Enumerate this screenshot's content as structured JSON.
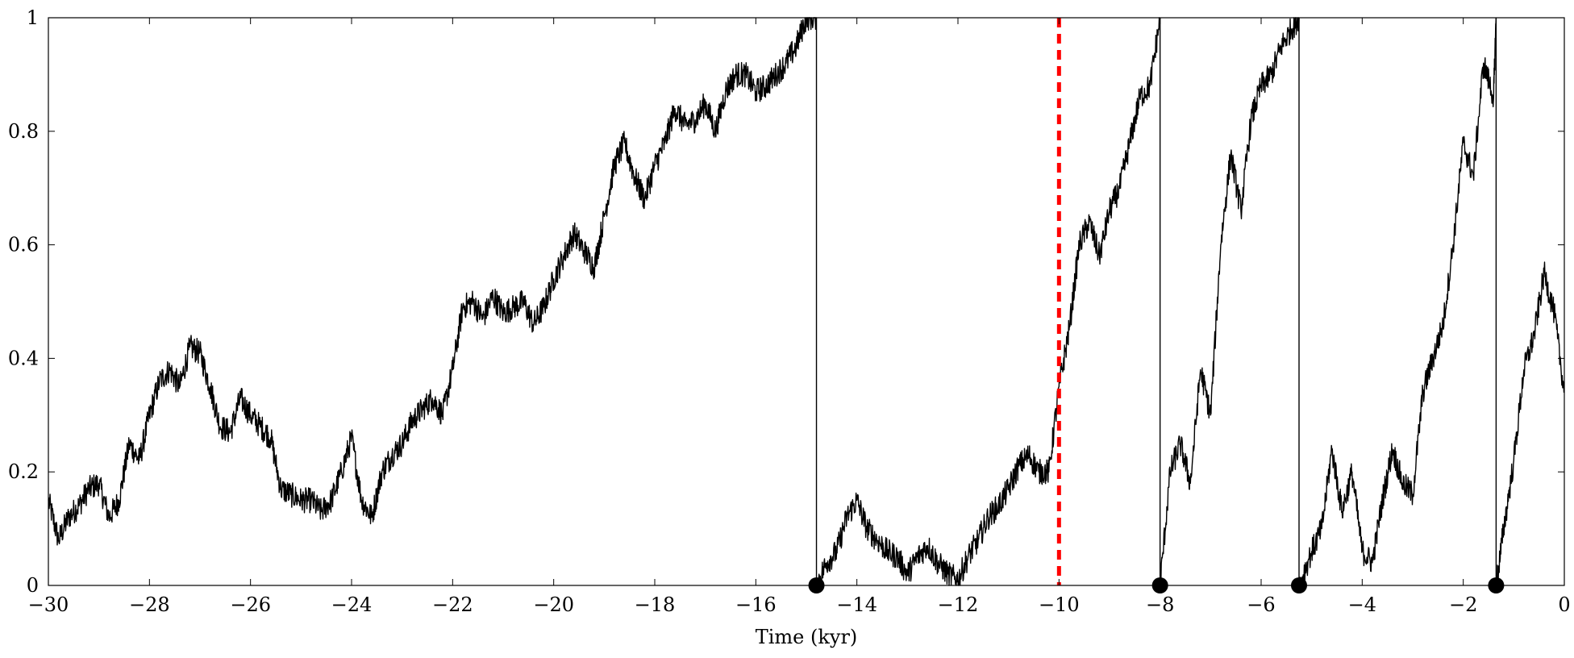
{
  "chart_data": {
    "type": "line",
    "title": "",
    "xlabel": "Time (kyr)",
    "ylabel": "",
    "xlim": [
      -30,
      0
    ],
    "ylim": [
      0,
      1
    ],
    "grid": false,
    "x_ticks": [
      -30,
      -28,
      -26,
      -24,
      -22,
      -20,
      -18,
      -16,
      -14,
      -12,
      -10,
      -8,
      -6,
      -4,
      -2,
      0
    ],
    "x_tick_labels": [
      "−30",
      "−28",
      "−26",
      "−24",
      "−22",
      "−20",
      "−18",
      "−16",
      "−14",
      "−12",
      "−10",
      "−8",
      "−6",
      "−4",
      "−2",
      "0"
    ],
    "y_ticks": [
      0,
      0.2,
      0.4,
      0.6,
      0.8,
      1
    ],
    "y_tick_labels": [
      "0",
      "0.2",
      "0.4",
      "0.6",
      "0.8",
      "1"
    ],
    "series": [
      {
        "color": "#000000",
        "x": [
          -30,
          -29.8,
          -29.6,
          -29.4,
          -29.2,
          -29.0,
          -28.8,
          -28.6,
          -28.4,
          -28.2,
          -28.0,
          -27.8,
          -27.6,
          -27.4,
          -27.2,
          -27.0,
          -26.8,
          -26.6,
          -26.4,
          -26.2,
          -26.0,
          -25.8,
          -25.6,
          -25.4,
          -25.2,
          -25.0,
          -24.8,
          -24.6,
          -24.4,
          -24.2,
          -24.0,
          -23.8,
          -23.6,
          -23.4,
          -23.2,
          -23.0,
          -22.8,
          -22.6,
          -22.4,
          -22.2,
          -22.0,
          -21.8,
          -21.6,
          -21.4,
          -21.2,
          -21.0,
          -20.8,
          -20.6,
          -20.4,
          -20.2,
          -20.0,
          -19.8,
          -19.6,
          -19.4,
          -19.2,
          -19.0,
          -18.8,
          -18.6,
          -18.4,
          -18.2,
          -18.0,
          -17.8,
          -17.6,
          -17.4,
          -17.2,
          -17.0,
          -16.8,
          -16.6,
          -16.4,
          -16.2,
          -16.0,
          -15.8,
          -15.6,
          -15.4,
          -15.2,
          -15.0,
          -14.8,
          -14.8,
          -14.6,
          -14.4,
          -14.2,
          -14.0,
          -13.8,
          -13.6,
          -13.4,
          -13.2,
          -13.0,
          -12.8,
          -12.6,
          -12.4,
          -12.2,
          -12.0,
          -11.8,
          -11.6,
          -11.4,
          -11.2,
          -11.0,
          -10.8,
          -10.6,
          -10.4,
          -10.2,
          -10.0,
          -9.8,
          -9.6,
          -9.4,
          -9.2,
          -9.0,
          -8.8,
          -8.6,
          -8.4,
          -8.2,
          -8.0,
          -8.0,
          -7.8,
          -7.6,
          -7.4,
          -7.2,
          -7.0,
          -6.8,
          -6.6,
          -6.4,
          -6.2,
          -6.0,
          -5.8,
          -5.6,
          -5.4,
          -5.25,
          -5.25,
          -5.0,
          -4.8,
          -4.6,
          -4.4,
          -4.2,
          -4.0,
          -3.8,
          -3.6,
          -3.4,
          -3.2,
          -3.0,
          -2.8,
          -2.6,
          -2.4,
          -2.2,
          -2.0,
          -1.8,
          -1.6,
          -1.4,
          -1.35,
          -1.35,
          -1.2,
          -1.0,
          -0.8,
          -0.6,
          -0.4,
          -0.2,
          0.0
        ],
        "y": [
          0.15,
          0.08,
          0.12,
          0.14,
          0.17,
          0.18,
          0.12,
          0.15,
          0.25,
          0.22,
          0.3,
          0.36,
          0.38,
          0.35,
          0.42,
          0.41,
          0.35,
          0.28,
          0.27,
          0.33,
          0.3,
          0.28,
          0.26,
          0.17,
          0.16,
          0.15,
          0.15,
          0.13,
          0.15,
          0.2,
          0.26,
          0.15,
          0.12,
          0.2,
          0.23,
          0.25,
          0.29,
          0.31,
          0.33,
          0.3,
          0.38,
          0.49,
          0.5,
          0.47,
          0.51,
          0.48,
          0.49,
          0.5,
          0.46,
          0.49,
          0.54,
          0.58,
          0.62,
          0.59,
          0.56,
          0.65,
          0.74,
          0.78,
          0.72,
          0.68,
          0.74,
          0.78,
          0.84,
          0.81,
          0.82,
          0.85,
          0.8,
          0.87,
          0.9,
          0.9,
          0.87,
          0.88,
          0.9,
          0.92,
          0.95,
          1.0,
          1.0,
          0.0,
          0.04,
          0.06,
          0.12,
          0.15,
          0.1,
          0.08,
          0.06,
          0.05,
          0.02,
          0.05,
          0.07,
          0.04,
          0.02,
          0.01,
          0.05,
          0.08,
          0.12,
          0.14,
          0.17,
          0.21,
          0.23,
          0.2,
          0.2,
          0.35,
          0.45,
          0.6,
          0.64,
          0.58,
          0.66,
          0.7,
          0.78,
          0.86,
          0.88,
          1.0,
          0.0,
          0.2,
          0.25,
          0.18,
          0.38,
          0.3,
          0.6,
          0.76,
          0.66,
          0.82,
          0.88,
          0.9,
          0.95,
          0.98,
          1.0,
          0.0,
          0.06,
          0.1,
          0.24,
          0.13,
          0.2,
          0.06,
          0.04,
          0.15,
          0.24,
          0.18,
          0.16,
          0.34,
          0.4,
          0.46,
          0.6,
          0.78,
          0.72,
          0.92,
          0.86,
          1.0,
          0.0,
          0.1,
          0.22,
          0.38,
          0.44,
          0.55,
          0.48,
          0.34
        ]
      }
    ],
    "vertical_reference_line": {
      "x": -10,
      "color": "#ff0000",
      "style": "dashed"
    },
    "markers": [
      {
        "x": -14.8,
        "y": 0
      },
      {
        "x": -8.0,
        "y": 0
      },
      {
        "x": -5.25,
        "y": 0
      },
      {
        "x": -1.35,
        "y": 0
      }
    ]
  }
}
